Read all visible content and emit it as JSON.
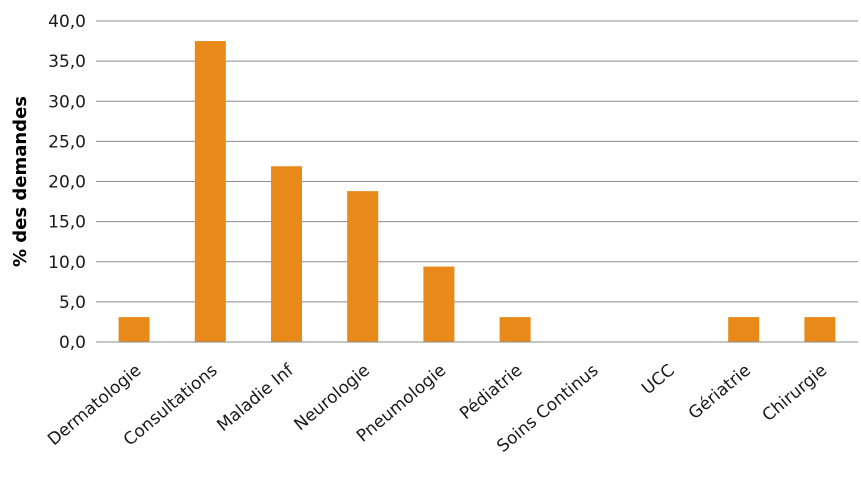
{
  "chart_data": {
    "type": "bar",
    "title": "",
    "xlabel": "",
    "ylabel": "% des demandes",
    "categories": [
      "Dermatologie",
      "Consultations",
      "Maladie Inf",
      "Neurologie",
      "Pneumologie",
      "Pédiatrie",
      "Soins Continus",
      "UCC",
      "Gériatrie",
      "Chirurgie"
    ],
    "values": [
      3.1,
      37.5,
      21.9,
      18.8,
      9.4,
      3.1,
      0.0,
      0.0,
      3.1,
      3.1
    ],
    "ylim": [
      0,
      40
    ],
    "yticks": [
      "0,0",
      "5,0",
      "10,0",
      "15,0",
      "20,0",
      "25,0",
      "30,0",
      "35,0",
      "40,0"
    ],
    "grid": true,
    "legend": "none",
    "bar_color": "#E8891A"
  }
}
